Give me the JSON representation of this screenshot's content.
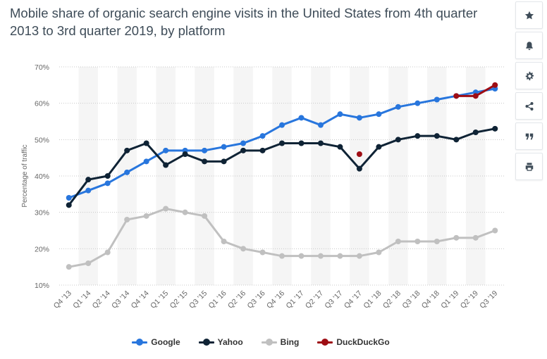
{
  "title": "Mobile share of organic search engine visits in the United States from 4th quarter 2013 to 3rd quarter 2019, by platform",
  "toolbar": [
    {
      "name": "star-icon"
    },
    {
      "name": "bell-icon"
    },
    {
      "name": "gear-icon"
    },
    {
      "name": "share-icon"
    },
    {
      "name": "quote-icon"
    },
    {
      "name": "print-icon"
    }
  ],
  "chart_data": {
    "type": "line",
    "ylabel": "Percentage of traffic",
    "xlabel": "",
    "ylim": [
      10,
      70
    ],
    "yticks": [
      "10%",
      "20%",
      "30%",
      "40%",
      "50%",
      "60%",
      "70%"
    ],
    "ytick_values": [
      10,
      20,
      30,
      40,
      50,
      60,
      70
    ],
    "grid": "horizontal dotted, alternating vertical bands",
    "legend_position": "bottom-center",
    "categories": [
      "Q4 '13",
      "Q1 '14",
      "Q2 '14",
      "Q3 '14",
      "Q4 '14",
      "Q1 '15",
      "Q2 '15",
      "Q3 '15",
      "Q1 '16",
      "Q2 '16",
      "Q3 '16",
      "Q4 '16",
      "Q1 '17",
      "Q2 '17",
      "Q3 '17",
      "Q4 '17",
      "Q1 '18",
      "Q2 '18",
      "Q3 '18",
      "Q4 '18",
      "Q1 '19",
      "Q2 '19",
      "Q3 '19"
    ],
    "series": [
      {
        "name": "Google",
        "color": "#2876dd",
        "values": [
          34,
          36,
          38,
          41,
          44,
          47,
          47,
          47,
          48,
          49,
          51,
          54,
          56,
          54,
          57,
          56,
          57,
          59,
          60,
          61,
          62,
          63,
          64
        ]
      },
      {
        "name": "Yahoo",
        "color": "#0f2335",
        "values": [
          32,
          39,
          40,
          47,
          49,
          43,
          46,
          44,
          44,
          47,
          47,
          49,
          49,
          49,
          48,
          42,
          48,
          50,
          51,
          51,
          50,
          52,
          53
        ]
      },
      {
        "name": "Bing",
        "color": "#c0c0c0",
        "values": [
          15,
          16,
          19,
          28,
          29,
          31,
          30,
          29,
          22,
          20,
          19,
          18,
          18,
          18,
          18,
          18,
          19,
          22,
          22,
          22,
          23,
          23,
          25
        ]
      },
      {
        "name": "DuckDuckGo",
        "color": "#9e0d14",
        "values": [
          null,
          null,
          null,
          null,
          null,
          null,
          null,
          null,
          null,
          null,
          null,
          null,
          null,
          null,
          null,
          46,
          null,
          null,
          null,
          null,
          62,
          62,
          65
        ]
      }
    ]
  }
}
